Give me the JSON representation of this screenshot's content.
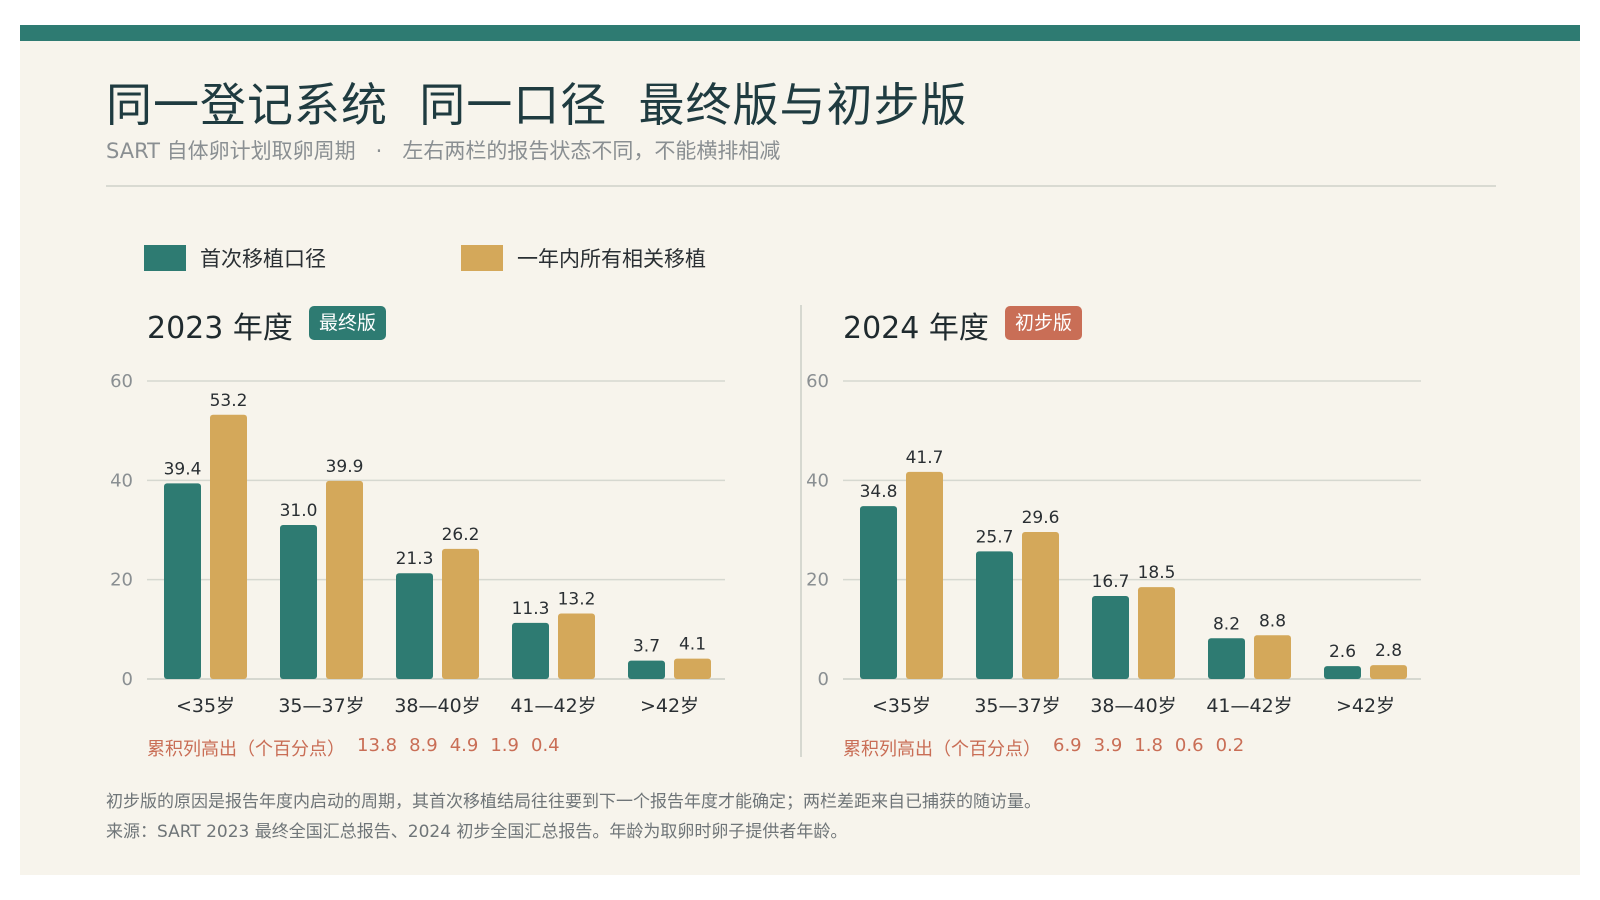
{
  "title": "同一登记系统  同一口径  最终版与初步版",
  "subtitle": "SART 自体卵计划取卵周期   ·   左右两栏的报告状态不同，不能横排相减",
  "legend": [
    {
      "label": "首次移植口径",
      "color": "#2e7b72"
    },
    {
      "label": "一年内所有相关移植",
      "color": "#d4a85a"
    }
  ],
  "colors": {
    "teal": "#2e7b72",
    "gold": "#d4a85a",
    "final_badge": "#2e7b72",
    "prelim_badge": "#c96e56",
    "gap_text": "#c96e56"
  },
  "panels": [
    {
      "title": "2023 年度",
      "badge": "最终版",
      "gap_label": "累积列高出（个百分点）",
      "gaps": [
        "13.8",
        "8.9",
        "4.9",
        "1.9",
        "0.4"
      ]
    },
    {
      "title": "2024 年度",
      "badge": "初步版",
      "gap_label": "累积列高出（个百分点）",
      "gaps": [
        "6.9",
        "3.9",
        "1.8",
        "0.6",
        "0.2"
      ]
    }
  ],
  "chart_data": [
    {
      "type": "bar",
      "title": "2023 年度",
      "categories": [
        "<35岁",
        "35—37岁",
        "38—40岁",
        "41—42岁",
        ">42岁"
      ],
      "series": [
        {
          "name": "首次移植口径",
          "values": [
            39.4,
            31.0,
            21.3,
            11.3,
            3.7
          ]
        },
        {
          "name": "一年内所有相关移植",
          "values": [
            53.2,
            39.9,
            26.2,
            13.2,
            4.1
          ]
        }
      ],
      "ylim": [
        0,
        60
      ],
      "yticks": [
        0,
        20,
        40,
        60
      ],
      "grid": true
    },
    {
      "type": "bar",
      "title": "2024 年度",
      "categories": [
        "<35岁",
        "35—37岁",
        "38—40岁",
        "41—42岁",
        ">42岁"
      ],
      "series": [
        {
          "name": "首次移植口径",
          "values": [
            34.8,
            25.7,
            16.7,
            8.2,
            2.6
          ]
        },
        {
          "name": "一年内所有相关移植",
          "values": [
            41.7,
            29.6,
            18.5,
            8.8,
            2.8
          ]
        }
      ],
      "ylim": [
        0,
        60
      ],
      "yticks": [
        0,
        20,
        40,
        60
      ],
      "grid": true
    }
  ],
  "footnotes": [
    "初步版的原因是报告年度内启动的周期，其首次移植结局往往要到下一个报告年度才能确定；两栏差距来自已捕获的随访量。",
    "来源：SART 2023 最终全国汇总报告、2024 初步全国汇总报告。年龄为取卵时卵子提供者年龄。"
  ]
}
